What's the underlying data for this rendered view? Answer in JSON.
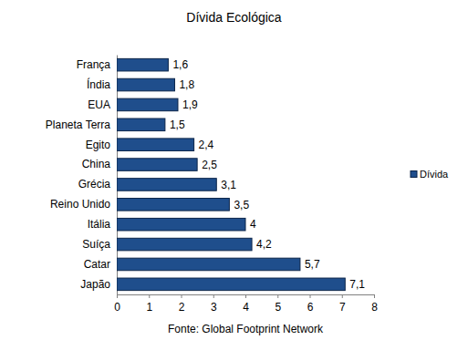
{
  "chart_data": {
    "type": "bar",
    "title": "Dívida Ecológica",
    "xlabel": "Fonte: Global Footprint Network",
    "orientation": "horizontal",
    "categories": [
      "França",
      "Índia",
      "EUA",
      "Planeta Terra",
      "Egito",
      "China",
      "Grécia",
      "Reino Unido",
      "Itália",
      "Suíça",
      "Catar",
      "Japão"
    ],
    "series": [
      {
        "name": "Dívida",
        "color": "#1f4e8c",
        "values": [
          1.6,
          1.8,
          1.9,
          1.5,
          2.4,
          2.5,
          3.1,
          3.5,
          4,
          4.2,
          5.7,
          7.1
        ],
        "value_labels": [
          "1,6",
          "1,8",
          "1,9",
          "1,5",
          "2,4",
          "2,5",
          "3,1",
          "3,5",
          "4",
          "4,2",
          "5,7",
          "7,1"
        ]
      }
    ],
    "xlim": [
      0,
      8
    ],
    "xticks": [
      0,
      1,
      2,
      3,
      4,
      5,
      6,
      7,
      8
    ],
    "grid": false,
    "data_labels": true,
    "legend": "right"
  }
}
